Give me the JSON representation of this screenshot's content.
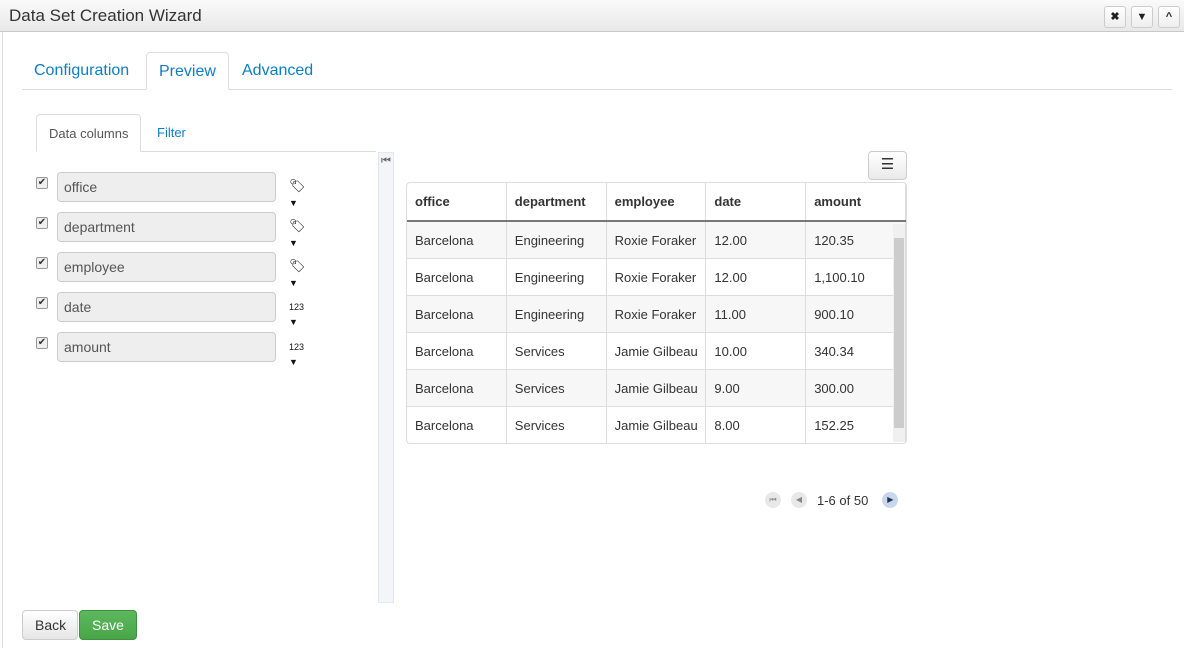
{
  "window": {
    "title": "Data Set Creation Wizard",
    "controls": [
      "close",
      "minimize",
      "collapse"
    ]
  },
  "tabs": [
    {
      "label": "Configuration"
    },
    {
      "label": "Preview",
      "active": true
    },
    {
      "label": "Advanced"
    }
  ],
  "inner_tabs": [
    {
      "label": "Data columns",
      "active": true
    },
    {
      "label": "Filter"
    }
  ],
  "columns": [
    {
      "name": "office",
      "checked": true,
      "type_icon": "tag-icon"
    },
    {
      "name": "department",
      "checked": true,
      "type_icon": "tag-icon"
    },
    {
      "name": "employee",
      "checked": true,
      "type_icon": "tag-icon"
    },
    {
      "name": "date",
      "checked": true,
      "type_icon": "number-icon",
      "type_label": "123"
    },
    {
      "name": "amount",
      "checked": true,
      "type_icon": "number-icon",
      "type_label": "123"
    }
  ],
  "table": {
    "headers": [
      "office",
      "department",
      "employee",
      "date",
      "amount"
    ],
    "rows": [
      [
        "Barcelona",
        "Engineering",
        "Roxie Foraker",
        "12.00",
        "120.35"
      ],
      [
        "Barcelona",
        "Engineering",
        "Roxie Foraker",
        "12.00",
        "1,100.10"
      ],
      [
        "Barcelona",
        "Engineering",
        "Roxie Foraker",
        "11.00",
        "900.10"
      ],
      [
        "Barcelona",
        "Services",
        "Jamie Gilbeau",
        "10.00",
        "340.34"
      ],
      [
        "Barcelona",
        "Services",
        "Jamie Gilbeau",
        "9.00",
        "300.00"
      ],
      [
        "Barcelona",
        "Services",
        "Jamie Gilbeau",
        "8.00",
        "152.25"
      ]
    ]
  },
  "pager": {
    "text": "1-6 of 50"
  },
  "buttons": {
    "back": "Back",
    "save": "Save"
  },
  "colors": {
    "link": "#0b7ec4",
    "save": "#5cb85c"
  }
}
